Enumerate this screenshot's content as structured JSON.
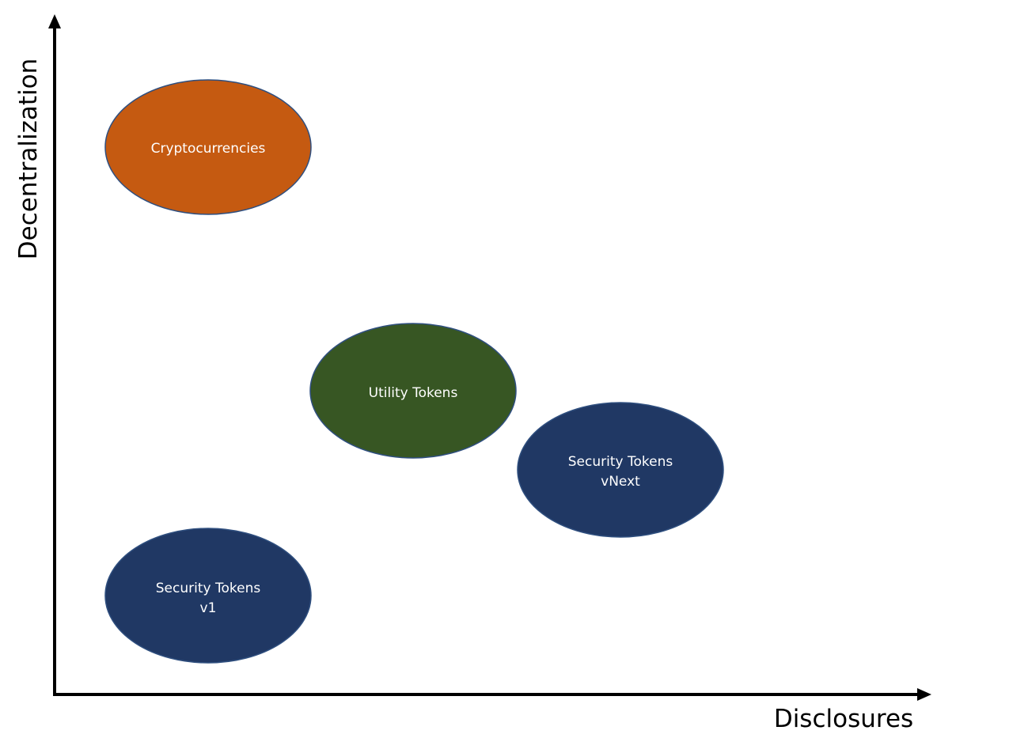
{
  "axes": {
    "x_label": "Disclosures",
    "y_label": "Decentralization"
  },
  "colors": {
    "axis": "#000000",
    "outline": "#2f4f7f",
    "text": "#ffffff"
  },
  "bubbles": [
    {
      "id": "cryptocurrencies",
      "lines": [
        "Cryptocurrencies"
      ],
      "fill": "#c55a11"
    },
    {
      "id": "utility-tokens",
      "lines": [
        "Utility Tokens"
      ],
      "fill": "#375623"
    },
    {
      "id": "security-tokens-vnext",
      "lines": [
        "Security Tokens",
        "vNext"
      ],
      "fill": "#203864"
    },
    {
      "id": "security-tokens-v1",
      "lines": [
        "Security Tokens",
        "v1"
      ],
      "fill": "#203864"
    }
  ]
}
